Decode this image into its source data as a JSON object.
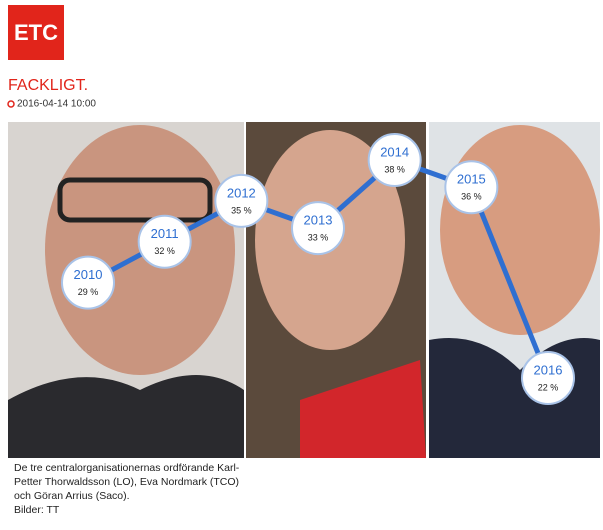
{
  "logo": "ETC",
  "section": "FACKLIGT.",
  "date": "2016-04-14 10:00",
  "chart_data": {
    "type": "line",
    "x": [
      2010,
      2011,
      2012,
      2013,
      2014,
      2015,
      2016
    ],
    "values": [
      29,
      32,
      35,
      33,
      38,
      36,
      22
    ],
    "value_labels": [
      "29 %",
      "32 %",
      "35 %",
      "33 %",
      "38 %",
      "36 %",
      "22 %"
    ],
    "color": "#2f6fd1"
  },
  "caption": [
    "De tre centralorganisationernas ordförande Karl-",
    "Petter Thorwaldsson (LO), Eva Nordmark (TCO)",
    "och Göran Arrius (Saco).",
    "Bilder: TT"
  ]
}
